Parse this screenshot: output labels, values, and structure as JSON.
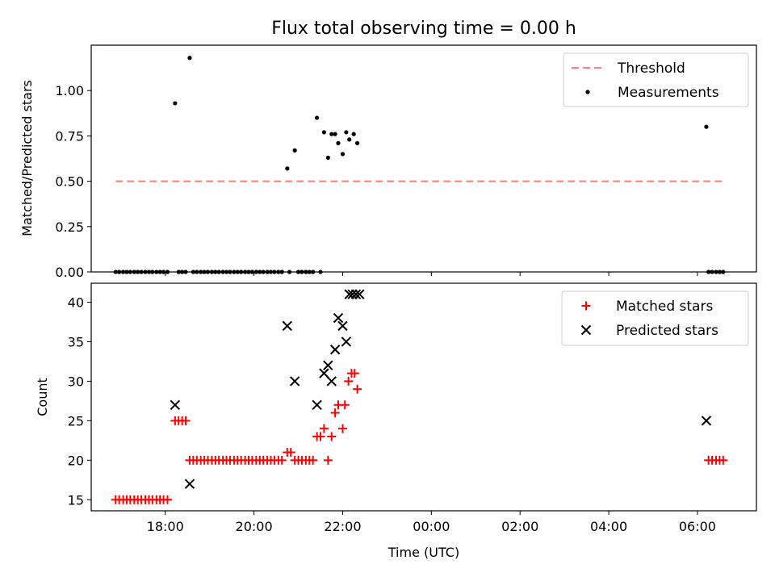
{
  "colors": {
    "threshold": "#ff7f7f",
    "measurement": "#000000",
    "matched": "#ff0000",
    "predicted": "#000000"
  },
  "chart_data": [
    {
      "type": "scatter",
      "title": "Flux total observing time = 0.00 h",
      "xlabel": "",
      "ylabel": "Matched/Predicted stars",
      "xlim": [
        16.33,
        31.33
      ],
      "ylim": [
        0,
        1.25
      ],
      "yticks": [
        "0.00",
        "0.25",
        "0.50",
        "0.75",
        "1.00"
      ],
      "grid": false,
      "legend_position": "top-right",
      "legend": [
        "Threshold",
        "Measurements"
      ],
      "threshold": {
        "name": "Threshold",
        "x": [
          16.88,
          30.63
        ],
        "y": 0.5,
        "style": "dashed"
      },
      "series": [
        {
          "name": "Measurements",
          "marker": "dot",
          "points": [
            [
              16.88,
              0
            ],
            [
              16.96,
              0
            ],
            [
              17.05,
              0
            ],
            [
              17.13,
              0
            ],
            [
              17.21,
              0
            ],
            [
              17.3,
              0
            ],
            [
              17.38,
              0
            ],
            [
              17.46,
              0
            ],
            [
              17.55,
              0
            ],
            [
              17.63,
              0
            ],
            [
              17.71,
              0
            ],
            [
              17.8,
              0
            ],
            [
              17.88,
              0
            ],
            [
              17.96,
              0
            ],
            [
              18.05,
              0
            ],
            [
              18.22,
              0.93
            ],
            [
              18.3,
              0
            ],
            [
              18.38,
              0
            ],
            [
              18.46,
              0
            ],
            [
              18.55,
              1.18
            ],
            [
              18.63,
              0
            ],
            [
              18.71,
              0
            ],
            [
              18.8,
              0
            ],
            [
              18.88,
              0
            ],
            [
              18.96,
              0
            ],
            [
              19.05,
              0
            ],
            [
              19.13,
              0
            ],
            [
              19.21,
              0
            ],
            [
              19.3,
              0
            ],
            [
              19.38,
              0
            ],
            [
              19.46,
              0
            ],
            [
              19.55,
              0
            ],
            [
              19.63,
              0
            ],
            [
              19.71,
              0
            ],
            [
              19.8,
              0
            ],
            [
              19.88,
              0
            ],
            [
              19.96,
              0
            ],
            [
              20.05,
              0
            ],
            [
              20.13,
              0
            ],
            [
              20.21,
              0
            ],
            [
              20.3,
              0
            ],
            [
              20.38,
              0
            ],
            [
              20.46,
              0
            ],
            [
              20.55,
              0
            ],
            [
              20.63,
              0
            ],
            [
              20.75,
              0.57
            ],
            [
              20.8,
              0
            ],
            [
              20.92,
              0.67
            ],
            [
              21.0,
              0
            ],
            [
              21.08,
              0
            ],
            [
              21.17,
              0
            ],
            [
              21.25,
              0
            ],
            [
              21.33,
              0
            ],
            [
              21.42,
              0.85
            ],
            [
              21.5,
              0
            ],
            [
              21.58,
              0.77
            ],
            [
              21.67,
              0.63
            ],
            [
              21.75,
              0.76
            ],
            [
              21.83,
              0.76
            ],
            [
              21.9,
              0.71
            ],
            [
              22.0,
              0.65
            ],
            [
              22.08,
              0.77
            ],
            [
              22.15,
              0.73
            ],
            [
              22.25,
              0.76
            ],
            [
              22.33,
              0.71
            ],
            [
              30.2,
              0.8
            ],
            [
              30.25,
              0
            ],
            [
              30.33,
              0
            ],
            [
              30.42,
              0
            ],
            [
              30.5,
              0
            ],
            [
              30.58,
              0
            ]
          ]
        }
      ]
    },
    {
      "type": "scatter",
      "title": "",
      "xlabel": "Time (UTC)",
      "ylabel": "Count",
      "xlim": [
        16.33,
        31.33
      ],
      "ylim": [
        13.6,
        42.4
      ],
      "yticks": [
        "15",
        "20",
        "25",
        "30",
        "35",
        "40"
      ],
      "xticks": [
        "18:00",
        "20:00",
        "22:00",
        "00:00",
        "02:00",
        "04:00",
        "06:00"
      ],
      "grid": false,
      "legend_position": "top-right",
      "legend": [
        "Matched stars",
        "Predicted stars"
      ],
      "series": [
        {
          "name": "Matched stars",
          "marker": "plus",
          "points": [
            [
              16.88,
              15
            ],
            [
              16.96,
              15
            ],
            [
              17.05,
              15
            ],
            [
              17.13,
              15
            ],
            [
              17.21,
              15
            ],
            [
              17.3,
              15
            ],
            [
              17.38,
              15
            ],
            [
              17.46,
              15
            ],
            [
              17.55,
              15
            ],
            [
              17.63,
              15
            ],
            [
              17.71,
              15
            ],
            [
              17.8,
              15
            ],
            [
              17.88,
              15
            ],
            [
              17.96,
              15
            ],
            [
              18.05,
              15
            ],
            [
              18.22,
              25
            ],
            [
              18.3,
              25
            ],
            [
              18.38,
              25
            ],
            [
              18.46,
              25
            ],
            [
              18.55,
              20
            ],
            [
              18.63,
              20
            ],
            [
              18.71,
              20
            ],
            [
              18.8,
              20
            ],
            [
              18.88,
              20
            ],
            [
              18.96,
              20
            ],
            [
              19.05,
              20
            ],
            [
              19.13,
              20
            ],
            [
              19.21,
              20
            ],
            [
              19.3,
              20
            ],
            [
              19.38,
              20
            ],
            [
              19.46,
              20
            ],
            [
              19.55,
              20
            ],
            [
              19.63,
              20
            ],
            [
              19.71,
              20
            ],
            [
              19.8,
              20
            ],
            [
              19.88,
              20
            ],
            [
              19.96,
              20
            ],
            [
              20.05,
              20
            ],
            [
              20.13,
              20
            ],
            [
              20.21,
              20
            ],
            [
              20.3,
              20
            ],
            [
              20.38,
              20
            ],
            [
              20.46,
              20
            ],
            [
              20.55,
              20
            ],
            [
              20.63,
              20
            ],
            [
              20.75,
              21
            ],
            [
              20.83,
              21
            ],
            [
              20.92,
              20
            ],
            [
              21.0,
              20
            ],
            [
              21.08,
              20
            ],
            [
              21.17,
              20
            ],
            [
              21.25,
              20
            ],
            [
              21.33,
              20
            ],
            [
              21.42,
              23
            ],
            [
              21.5,
              23
            ],
            [
              21.58,
              24
            ],
            [
              21.67,
              20
            ],
            [
              21.75,
              23
            ],
            [
              21.83,
              26
            ],
            [
              21.9,
              27
            ],
            [
              22.0,
              24
            ],
            [
              22.05,
              27
            ],
            [
              22.13,
              30
            ],
            [
              22.2,
              31
            ],
            [
              22.27,
              31
            ],
            [
              22.33,
              29
            ],
            [
              30.25,
              20
            ],
            [
              30.33,
              20
            ],
            [
              30.42,
              20
            ],
            [
              30.5,
              20
            ],
            [
              30.58,
              20
            ]
          ]
        },
        {
          "name": "Predicted stars",
          "marker": "x",
          "points": [
            [
              18.22,
              27
            ],
            [
              18.55,
              17
            ],
            [
              20.75,
              37
            ],
            [
              20.92,
              30
            ],
            [
              21.42,
              27
            ],
            [
              21.58,
              31
            ],
            [
              21.67,
              32
            ],
            [
              21.75,
              30
            ],
            [
              21.83,
              34
            ],
            [
              21.9,
              38
            ],
            [
              22.0,
              37
            ],
            [
              22.08,
              35
            ],
            [
              22.15,
              41
            ],
            [
              22.22,
              41
            ],
            [
              22.3,
              41
            ],
            [
              22.38,
              41
            ],
            [
              30.2,
              25
            ]
          ]
        }
      ]
    }
  ]
}
